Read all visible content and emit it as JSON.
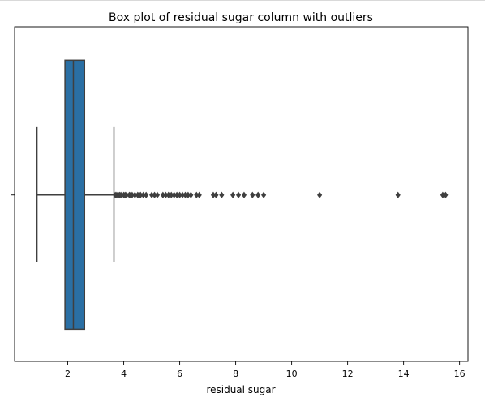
{
  "chart_data": {
    "type": "box",
    "title": "Box plot of residual sugar column with outliers",
    "xlabel": "residual sugar",
    "ylabel": "",
    "xlim": [
      0.1,
      16.3
    ],
    "xticks": [
      2,
      4,
      6,
      8,
      10,
      12,
      14,
      16
    ],
    "grid": false,
    "box": {
      "min": 0.9,
      "q1": 1.9,
      "median": 2.2,
      "q3": 2.6,
      "max": 3.65,
      "color": "#2a6fa4",
      "line_color": "#3f3f3f"
    },
    "outliers": [
      3.7,
      3.75,
      3.8,
      3.85,
      3.9,
      4.0,
      4.05,
      4.1,
      4.2,
      4.25,
      4.3,
      4.4,
      4.5,
      4.55,
      4.6,
      4.7,
      4.8,
      5.0,
      5.1,
      5.2,
      5.4,
      5.5,
      5.6,
      5.7,
      5.8,
      5.9,
      6.0,
      6.1,
      6.2,
      6.3,
      6.4,
      6.6,
      6.7,
      7.2,
      7.3,
      7.5,
      7.9,
      8.1,
      8.3,
      8.6,
      8.8,
      9.0,
      11.0,
      13.8,
      15.4,
      15.5
    ]
  }
}
